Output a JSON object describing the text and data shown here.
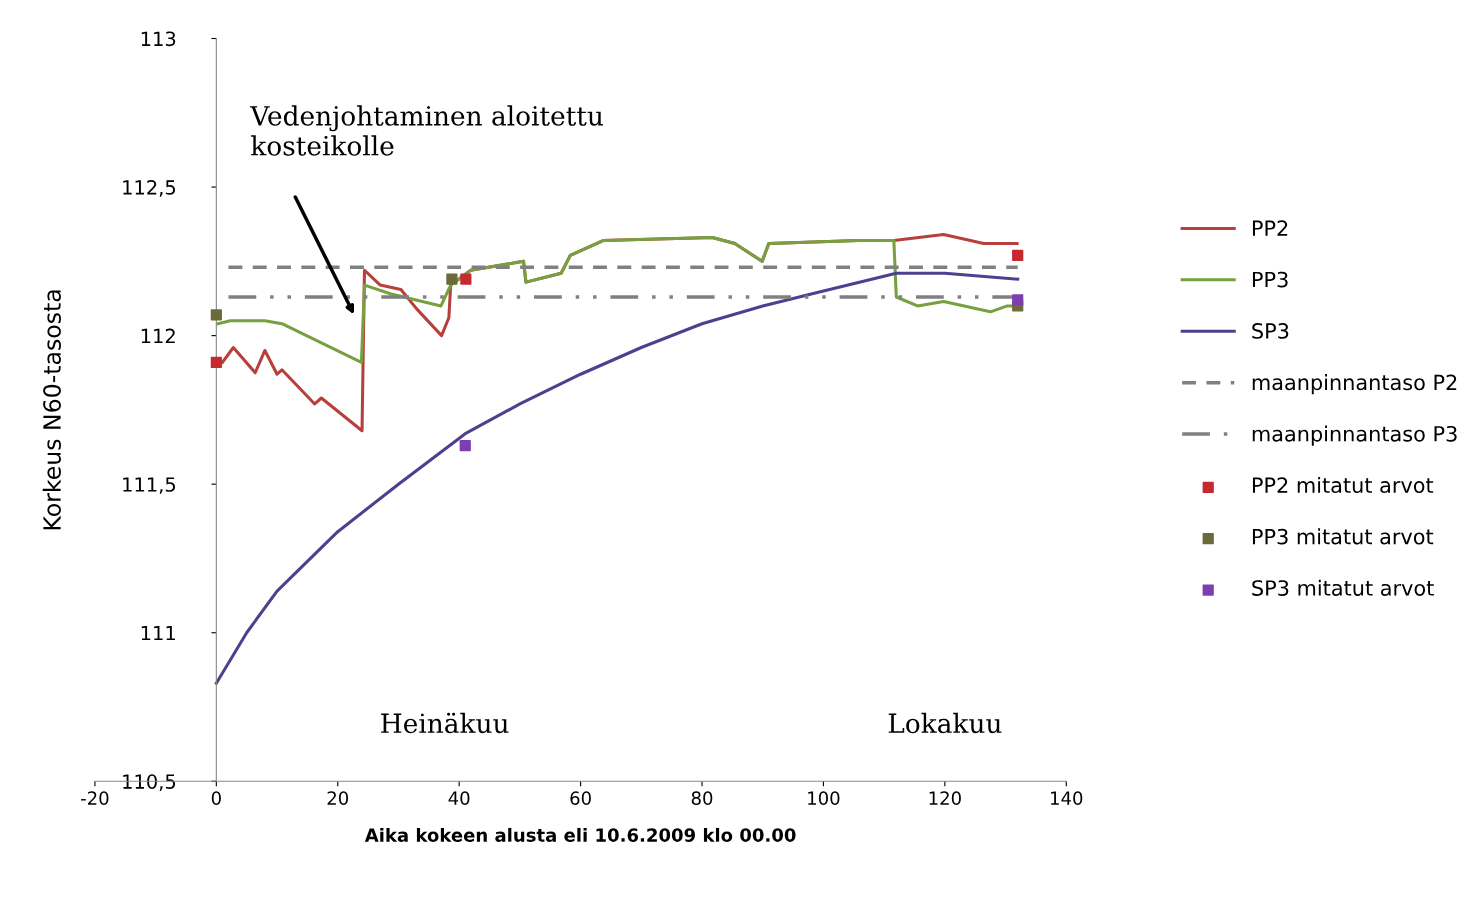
{
  "chart_data": {
    "type": "line",
    "xlabel": "Aika kokeen alusta eli 10.6.2009 klo 00.00",
    "ylabel": "Korkeus N60-tasosta",
    "xlim": [
      -20,
      140
    ],
    "xticks": [
      -20,
      0,
      20,
      40,
      60,
      80,
      100,
      120,
      140
    ],
    "ylim": [
      110.5,
      113
    ],
    "yticks": [
      {
        "value": 110.5,
        "label": "110,5"
      },
      {
        "value": 111,
        "label": "111"
      },
      {
        "value": 111.5,
        "label": "111,5"
      },
      {
        "value": 112,
        "label": "112"
      },
      {
        "value": 112.5,
        "label": "112,5"
      },
      {
        "value": 113,
        "label": "113"
      }
    ],
    "legend": "right",
    "marker": "none",
    "line_style": "solid",
    "series": [
      {
        "name": "PP2",
        "color": "#b8403c",
        "x": [
          1,
          2.8,
          6.4,
          8,
          10,
          10.8,
          16.2,
          17.3,
          24,
          24.4,
          27,
          30.4,
          33,
          37.1,
          38.3,
          38.6,
          41.9,
          50.6,
          51,
          56.8,
          58.3,
          63.7,
          81.7,
          85.4,
          89.9,
          91,
          105.7,
          111.6,
          119.8,
          126.4,
          131.9
        ],
        "values": [
          111.91,
          111.96,
          111.875,
          111.95,
          111.87,
          111.885,
          111.77,
          111.79,
          111.68,
          112.22,
          112.17,
          112.155,
          112.09,
          112.0,
          112.06,
          112.17,
          112.22,
          112.25,
          112.18,
          112.21,
          112.27,
          112.32,
          112.33,
          112.31,
          112.25,
          112.31,
          112.32,
          112.32,
          112.34,
          112.31,
          112.31
        ]
      },
      {
        "name": "PP3",
        "color": "#77a040",
        "x": [
          0.3,
          2.3,
          8,
          10.8,
          23.9,
          24.4,
          28.8,
          37,
          38.6,
          41.9,
          50.6,
          51,
          56.8,
          58.3,
          63.7,
          81.7,
          85.4,
          89.9,
          91,
          105.7,
          111.6,
          112,
          115.5,
          119.8,
          127.5,
          130.3,
          132
        ],
        "values": [
          112.04,
          112.05,
          112.05,
          112.04,
          111.91,
          112.17,
          112.14,
          112.1,
          112.17,
          112.22,
          112.25,
          112.18,
          112.21,
          112.27,
          112.32,
          112.33,
          112.31,
          112.25,
          112.31,
          112.32,
          112.32,
          112.13,
          112.1,
          112.115,
          112.08,
          112.1,
          112.1
        ]
      },
      {
        "name": "SP3",
        "color": "#4f3f8f",
        "x": [
          0,
          5,
          10,
          20,
          30,
          41,
          50,
          60,
          70,
          80,
          90,
          100,
          112,
          120,
          132
        ],
        "values": [
          110.83,
          111.0,
          111.14,
          111.34,
          111.5,
          111.67,
          111.77,
          111.87,
          111.96,
          112.04,
          112.1,
          112.15,
          112.21,
          112.21,
          112.19
        ]
      },
      {
        "name": "PP2 mitatut arvot",
        "type": "scatter",
        "marker": "square",
        "color": "#c42a2f",
        "x": [
          0,
          41.1,
          132
        ],
        "values": [
          111.91,
          112.19,
          112.27
        ]
      },
      {
        "name": "PP3 mitatut arvot",
        "type": "scatter",
        "marker": "square",
        "color": "#6b6b3a",
        "x": [
          0,
          38.8,
          132
        ],
        "values": [
          112.07,
          112.19,
          112.1
        ]
      },
      {
        "name": "SP3 mitatut arvot",
        "type": "scatter",
        "marker": "square",
        "color": "#7d3fb0",
        "x": [
          41,
          132
        ],
        "values": [
          111.63,
          112.12
        ]
      }
    ],
    "ref_lines": [
      {
        "axis": "y",
        "value": 112.23,
        "label": "maanpinnantaso P2",
        "color": "#808080",
        "line_style": "dashed"
      },
      {
        "axis": "y",
        "value": 112.13,
        "label": "maanpinnantaso P3",
        "color": "#808080",
        "line_style": "dashdot"
      }
    ],
    "annotations": [
      "Vedenjohtaminen aloitettu\nkosteikolle",
      "Heinäkuu",
      "Lokakuu"
    ]
  }
}
